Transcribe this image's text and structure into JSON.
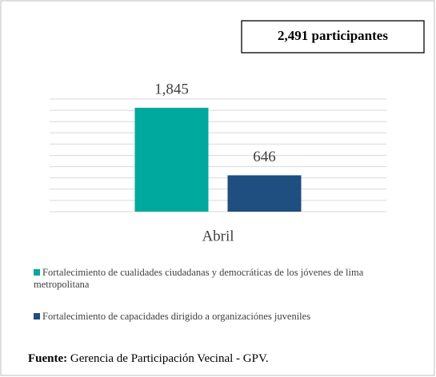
{
  "chart_data": {
    "type": "bar",
    "annotation": "2,491 participantes",
    "categories": [
      "Abril"
    ],
    "series": [
      {
        "name": "Fortalecimiento de cualidades ciudadanas y democráticas de los jóvenes de lima metropolitana",
        "color": "#00a99d",
        "values": [
          1845
        ],
        "value_labels": [
          "1,845"
        ]
      },
      {
        "name": "Fortalecimiento de capacidades dirigido a organizaciónes juveniles",
        "color": "#1f4e80",
        "values": [
          646
        ],
        "value_labels": [
          "646"
        ]
      }
    ],
    "ylim": [
      0,
      2000
    ],
    "yticks": [
      0,
      200,
      400,
      600,
      800,
      1000,
      1200,
      1400,
      1600,
      1800,
      2000
    ],
    "grid": true,
    "source_label": "Fuente:",
    "source_text": "Gerencia de Participación Vecinal - GPV."
  }
}
